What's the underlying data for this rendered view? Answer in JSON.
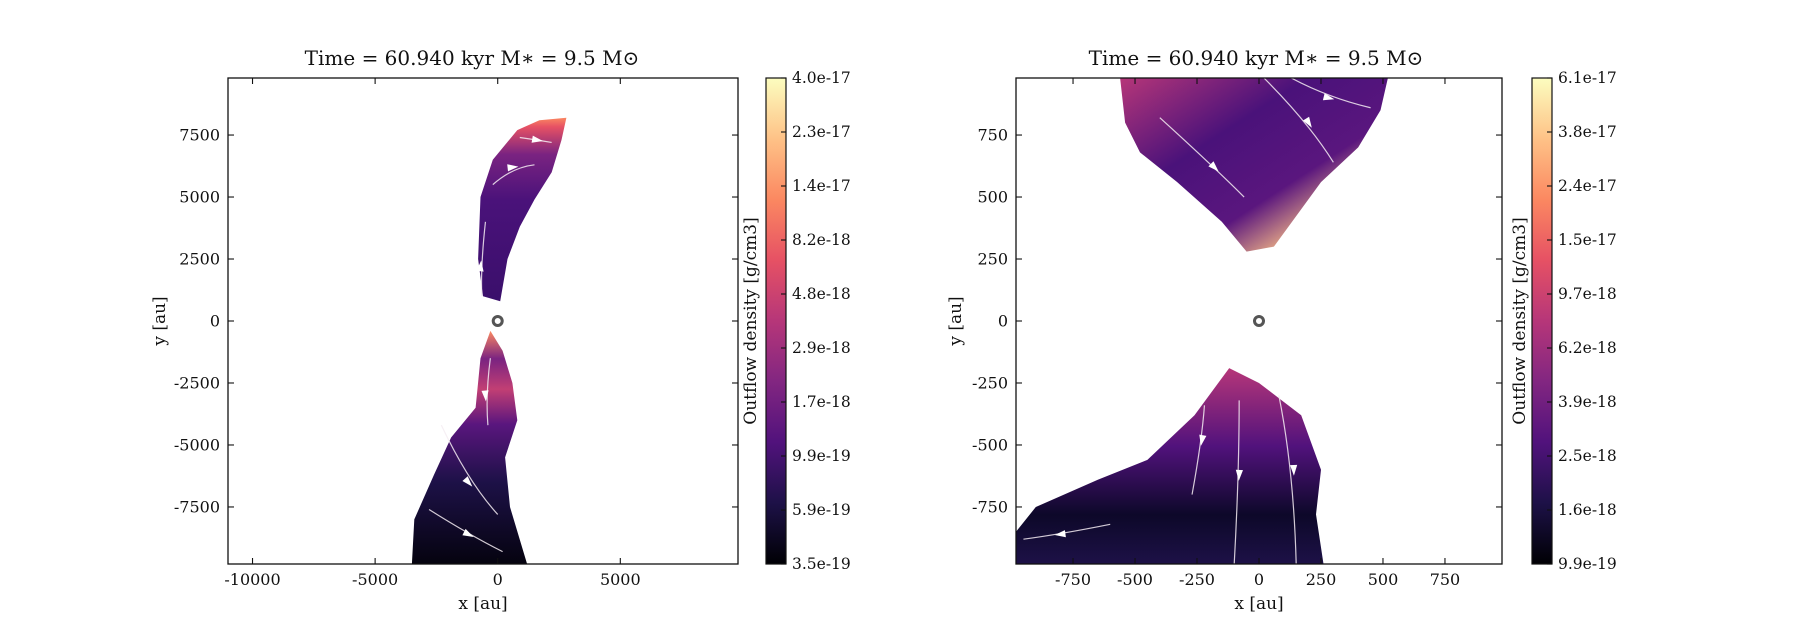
{
  "colors": {
    "colormap": [
      "#000004",
      "#1d1147",
      "#51127c",
      "#822681",
      "#b63679",
      "#e65164",
      "#fb8861",
      "#fec287",
      "#fcfdbf"
    ],
    "streamline": "#f4ecf2",
    "star_marker": "#555555"
  },
  "chart_data": [
    {
      "type": "heatmap",
      "title": "Time = 60.940 kyr    M∗ = 9.5 M⊙",
      "xlabel": "x [au]",
      "ylabel": "y [au]",
      "xlim": [
        -11000,
        9800
      ],
      "ylim": [
        -9800,
        9800
      ],
      "xticks": [
        -10000,
        -5000,
        0,
        5000
      ],
      "xtick_labels": [
        "-10000",
        "-5000",
        "0",
        "5000"
      ],
      "yticks": [
        -7500,
        -5000,
        -2500,
        0,
        2500,
        5000,
        7500
      ],
      "ytick_labels": [
        "-7500",
        "-5000",
        "-2500",
        "0",
        "2500",
        "5000",
        "7500"
      ],
      "colorbar": {
        "label": "Outflow density [g/cm3]",
        "scale": "log",
        "tick_labels": [
          "3.5e-19",
          "5.9e-19",
          "9.9e-19",
          "1.7e-18",
          "2.9e-18",
          "4.8e-18",
          "8.2e-18",
          "1.4e-17",
          "2.3e-17",
          "4.0e-17"
        ]
      },
      "star_position": [
        0,
        0
      ],
      "outflow_regions": [
        {
          "name": "northern lobe",
          "outline": [
            [
              -600,
              1000
            ],
            [
              -800,
              2500
            ],
            [
              -700,
              5000
            ],
            [
              -200,
              6500
            ],
            [
              800,
              7700
            ],
            [
              1700,
              8100
            ],
            [
              2800,
              8200
            ],
            [
              2600,
              7300
            ],
            [
              2200,
              6000
            ],
            [
              1500,
              4900
            ],
            [
              900,
              3800
            ],
            [
              400,
              2500
            ],
            [
              100,
              800
            ]
          ],
          "streamlines": [
            [
              [
                -650,
                1000
              ],
              [
                -700,
                2200
              ],
              [
                -500,
                4000
              ]
            ],
            [
              [
                -200,
                5500
              ],
              [
                600,
                6200
              ],
              [
                1500,
                6300
              ]
            ],
            [
              [
                900,
                7400
              ],
              [
                1600,
                7300
              ],
              [
                2200,
                7200
              ]
            ]
          ]
        },
        {
          "name": "southern lobe",
          "outline": [
            [
              -300,
              -400
            ],
            [
              -700,
              -1500
            ],
            [
              -900,
              -3500
            ],
            [
              -1900,
              -4700
            ],
            [
              -2600,
              -6200
            ],
            [
              -3400,
              -8000
            ],
            [
              -3500,
              -9800
            ],
            [
              1200,
              -9800
            ],
            [
              500,
              -7500
            ],
            [
              300,
              -5500
            ],
            [
              800,
              -4000
            ],
            [
              600,
              -2500
            ],
            [
              200,
              -1200
            ]
          ],
          "streamlines": [
            [
              [
                -300,
                -1500
              ],
              [
                -500,
                -3000
              ],
              [
                -400,
                -4200
              ]
            ],
            [
              [
                -2300,
                -4200
              ],
              [
                -1200,
                -6500
              ],
              [
                0,
                -7800
              ]
            ],
            [
              [
                -2800,
                -7600
              ],
              [
                -1200,
                -8600
              ],
              [
                200,
                -9300
              ]
            ]
          ]
        }
      ]
    },
    {
      "type": "heatmap",
      "title": "Time = 60.940 kyr    M∗ = 9.5 M⊙",
      "xlabel": "x [au]",
      "ylabel": "y [au]",
      "xlim": [
        -980,
        980
      ],
      "ylim": [
        -980,
        980
      ],
      "xticks": [
        -750,
        -500,
        -250,
        0,
        250,
        500,
        750
      ],
      "xtick_labels": [
        "-750",
        "-500",
        "-250",
        "0",
        "250",
        "500",
        "750"
      ],
      "yticks": [
        -750,
        -500,
        -250,
        0,
        250,
        500,
        750
      ],
      "ytick_labels": [
        "-750",
        "-500",
        "-250",
        "0",
        "250",
        "500",
        "750"
      ],
      "colorbar": {
        "label": "Outflow density [g/cm3]",
        "scale": "log",
        "tick_labels": [
          "9.9e-19",
          "1.6e-18",
          "2.5e-18",
          "3.9e-18",
          "6.2e-18",
          "9.7e-18",
          "1.5e-17",
          "2.4e-17",
          "3.8e-17",
          "6.1e-17"
        ]
      },
      "star_position": [
        0,
        0
      ],
      "outflow_regions": [
        {
          "name": "northern cone",
          "outline": [
            [
              -560,
              980
            ],
            [
              -540,
              800
            ],
            [
              -480,
              680
            ],
            [
              -330,
              560
            ],
            [
              -150,
              400
            ],
            [
              -50,
              280
            ],
            [
              60,
              300
            ],
            [
              250,
              560
            ],
            [
              400,
              700
            ],
            [
              490,
              850
            ],
            [
              520,
              980
            ]
          ],
          "streamlines": [
            [
              [
                -400,
                820
              ],
              [
                -180,
                620
              ],
              [
                -60,
                500
              ]
            ],
            [
              [
                20,
                980
              ],
              [
                200,
                800
              ],
              [
                300,
                640
              ]
            ],
            [
              [
                130,
                980
              ],
              [
                280,
                900
              ],
              [
                450,
                860
              ]
            ]
          ]
        },
        {
          "name": "southern cone",
          "outline": [
            [
              -980,
              -850
            ],
            [
              -900,
              -750
            ],
            [
              -650,
              -640
            ],
            [
              -450,
              -560
            ],
            [
              -260,
              -380
            ],
            [
              -120,
              -190
            ],
            [
              0,
              -250
            ],
            [
              170,
              -380
            ],
            [
              250,
              -600
            ],
            [
              230,
              -780
            ],
            [
              260,
              -980
            ],
            [
              -980,
              -980
            ]
          ],
          "streamlines": [
            [
              [
                -220,
                -340
              ],
              [
                -230,
                -480
              ],
              [
                -270,
                -700
              ]
            ],
            [
              [
                -80,
                -320
              ],
              [
                -80,
                -620
              ],
              [
                -100,
                -980
              ]
            ],
            [
              [
                80,
                -300
              ],
              [
                140,
                -600
              ],
              [
                150,
                -980
              ]
            ],
            [
              [
                -600,
                -820
              ],
              [
                -800,
                -860
              ],
              [
                -950,
                -880
              ]
            ]
          ]
        }
      ]
    }
  ]
}
